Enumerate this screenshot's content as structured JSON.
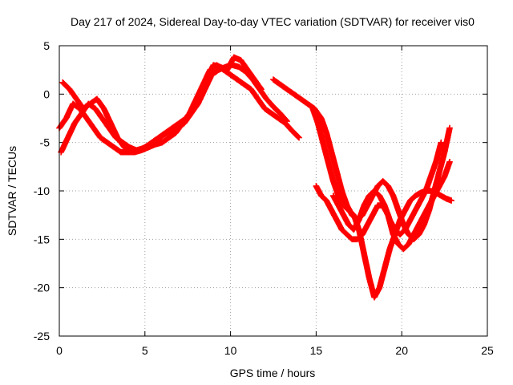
{
  "chart_data": {
    "type": "scatter",
    "title": "Day 217 of 2024, Sidereal Day-to-day VTEC variation (SDTVAR) for receiver vis0",
    "xlabel": "GPS time / hours",
    "ylabel": "SDTVAR / TECUs",
    "xlim": [
      0,
      25
    ],
    "ylim": [
      -25,
      5
    ],
    "x_ticks": [
      0,
      5,
      10,
      15,
      20,
      25
    ],
    "y_ticks": [
      5,
      0,
      -5,
      -10,
      -15,
      -20,
      -25
    ],
    "x_tick_labels": [
      "0",
      "5",
      "10",
      "15",
      "20",
      "25"
    ],
    "y_tick_labels": [
      "5",
      "0",
      "-5",
      "-10",
      "-15",
      "-20",
      "-25"
    ],
    "grid": true,
    "legend": "none",
    "marker": "plus",
    "color": "#ff0000",
    "series": [
      {
        "x": [
          0.0,
          0.4,
          0.8,
          1.2,
          1.6,
          2.0,
          2.4,
          2.8,
          3.2,
          3.6,
          4.0,
          4.4,
          4.8,
          5.2,
          5.6,
          6.0,
          6.4,
          6.8,
          7.2,
          7.6,
          8.0,
          8.4,
          8.8,
          9.2,
          9.6,
          10.0,
          10.4,
          10.8,
          11.2,
          11.6,
          12.0,
          12.4,
          12.8,
          13.2,
          13.6,
          14.0
        ],
        "y": [
          -3.5,
          -2.5,
          -1.0,
          -1.5,
          -2.5,
          -3.5,
          -4.5,
          -5.0,
          -5.5,
          -6.0,
          -6.0,
          -6.0,
          -5.8,
          -5.5,
          -5.2,
          -5.0,
          -4.5,
          -4.0,
          -3.0,
          -2.0,
          -0.5,
          1.0,
          2.5,
          3.0,
          2.5,
          2.0,
          1.5,
          1.0,
          0.5,
          -0.5,
          -1.5,
          -2.0,
          -2.5,
          -3.0,
          -3.8,
          -4.5
        ]
      },
      {
        "x": [
          0.2,
          0.6,
          1.0,
          1.4,
          1.8,
          2.2,
          2.6,
          3.0,
          3.4,
          3.8,
          4.2,
          4.6,
          5.0,
          5.4,
          5.8,
          6.2,
          6.6,
          7.0,
          7.4,
          7.8,
          8.2,
          8.6,
          9.0,
          9.4,
          9.8,
          10.2,
          10.6,
          11.0,
          11.4,
          11.8
        ],
        "y": [
          1.2,
          0.5,
          -0.5,
          -1.5,
          -1.0,
          -0.5,
          -1.5,
          -3.0,
          -4.5,
          -5.5,
          -6.0,
          -5.8,
          -5.5,
          -5.0,
          -4.5,
          -4.0,
          -3.5,
          -3.0,
          -2.5,
          -1.5,
          0.0,
          1.5,
          3.0,
          2.8,
          2.5,
          3.8,
          3.5,
          2.5,
          1.5,
          0.5
        ]
      },
      {
        "x": [
          0.1,
          0.5,
          0.9,
          1.3,
          1.7,
          2.1,
          2.5,
          2.9,
          3.3,
          3.7,
          4.1,
          4.5,
          4.9,
          5.3,
          5.7,
          6.1,
          6.5,
          6.9,
          7.3,
          7.7,
          8.1,
          8.5,
          8.9,
          9.3,
          9.7,
          10.1,
          10.5,
          10.9,
          11.3,
          11.7,
          12.1,
          12.5,
          12.9,
          13.3
        ],
        "y": [
          -6.0,
          -4.5,
          -3.0,
          -2.0,
          -1.0,
          -1.5,
          -2.5,
          -3.5,
          -4.5,
          -5.0,
          -5.5,
          -5.8,
          -5.6,
          -5.2,
          -4.8,
          -4.2,
          -3.8,
          -3.5,
          -3.0,
          -2.0,
          -1.0,
          0.5,
          2.0,
          2.5,
          2.8,
          3.0,
          2.8,
          2.3,
          1.5,
          0.5,
          -0.5,
          -1.3,
          -2.0,
          -2.8
        ]
      },
      {
        "x": [
          12.5,
          12.9,
          13.3,
          13.7,
          14.1,
          14.5,
          14.9,
          15.3,
          15.6,
          15.9,
          16.2,
          16.5,
          16.8,
          17.1,
          17.4,
          17.7,
          18.0,
          18.3,
          18.6,
          18.9,
          19.2,
          19.5,
          19.8,
          20.1,
          20.4,
          20.7,
          21.0,
          21.3,
          21.6,
          21.9,
          22.2,
          22.5,
          22.8
        ],
        "y": [
          1.5,
          1.0,
          0.5,
          0.0,
          -0.5,
          -1.0,
          -1.5,
          -2.5,
          -4.0,
          -6.0,
          -8.0,
          -10.0,
          -11.5,
          -12.5,
          -13.0,
          -12.5,
          -11.5,
          -10.5,
          -9.5,
          -9.0,
          -9.5,
          -10.5,
          -12.0,
          -13.5,
          -14.5,
          -15.0,
          -14.5,
          -13.5,
          -12.0,
          -10.0,
          -8.0,
          -6.0,
          -3.5
        ]
      },
      {
        "x": [
          14.8,
          15.1,
          15.4,
          15.7,
          16.0,
          16.3,
          16.6,
          16.9,
          17.2,
          17.5,
          17.8,
          18.1,
          18.4,
          18.7,
          19.0,
          19.3,
          19.6,
          19.9,
          20.2,
          20.5,
          20.8,
          21.1,
          21.4,
          21.7,
          22.0,
          22.3,
          22.6,
          22.9
        ],
        "y": [
          -1.5,
          -3.0,
          -5.0,
          -7.0,
          -9.0,
          -10.5,
          -11.5,
          -12.0,
          -12.5,
          -14.0,
          -16.5,
          -19.0,
          -21.0,
          -20.0,
          -18.0,
          -16.0,
          -14.5,
          -13.0,
          -12.0,
          -11.0,
          -10.5,
          -10.2,
          -10.0,
          -10.0,
          -10.2,
          -10.5,
          -10.8,
          -11.0
        ]
      },
      {
        "x": [
          15.0,
          15.3,
          15.6,
          15.9,
          16.2,
          16.5,
          16.8,
          17.1,
          17.4,
          17.7,
          18.0,
          18.3,
          18.6,
          18.9,
          19.2,
          19.5,
          19.8,
          20.1,
          20.4,
          20.7,
          21.0,
          21.3,
          21.6,
          21.9,
          22.2,
          22.5,
          22.8
        ],
        "y": [
          -9.5,
          -10.5,
          -11.0,
          -12.0,
          -13.0,
          -14.0,
          -14.5,
          -15.0,
          -15.0,
          -14.5,
          -13.5,
          -12.5,
          -11.5,
          -11.5,
          -12.5,
          -14.5,
          -15.5,
          -16.0,
          -15.5,
          -14.5,
          -13.5,
          -12.5,
          -11.5,
          -10.5,
          -9.5,
          -8.5,
          -7.0
        ]
      },
      {
        "x": [
          16.0,
          16.3,
          16.6,
          16.9,
          17.2,
          17.5,
          17.8,
          18.1,
          18.4,
          18.7,
          19.0,
          19.3,
          19.6,
          19.9,
          20.2,
          20.5,
          20.8,
          21.1,
          21.4,
          21.7,
          22.0,
          22.3
        ],
        "y": [
          -10.5,
          -11.5,
          -12.5,
          -13.5,
          -14.0,
          -13.0,
          -11.5,
          -10.5,
          -10.0,
          -10.5,
          -11.5,
          -13.0,
          -14.0,
          -14.5,
          -14.0,
          -13.0,
          -12.0,
          -11.0,
          -10.0,
          -8.5,
          -7.0,
          -5.0
        ]
      }
    ]
  }
}
